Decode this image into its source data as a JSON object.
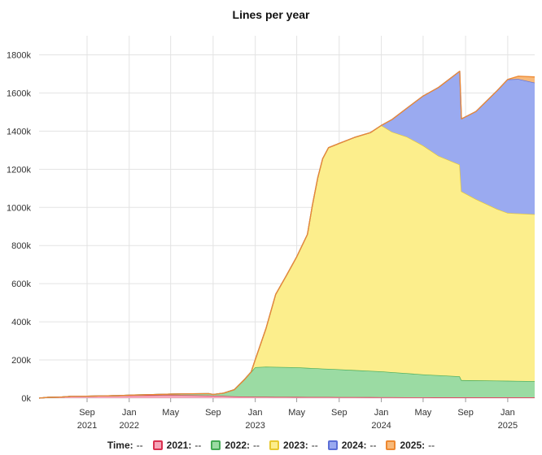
{
  "chart_data": {
    "type": "area",
    "stacked": true,
    "title": "Lines per year",
    "xlabel": "",
    "ylabel": "",
    "ylim": [
      0,
      1900000
    ],
    "xlim": [
      "2021-04-15",
      "2025-03-20"
    ],
    "y_ticks": [
      0,
      200000,
      400000,
      600000,
      800000,
      1000000,
      1200000,
      1400000,
      1600000,
      1800000
    ],
    "y_tick_labels": [
      "0k",
      "200k",
      "400k",
      "600k",
      "800k",
      "1000k",
      "1200k",
      "1400k",
      "1600k",
      "1800k"
    ],
    "x_ticks": [
      {
        "date": "2021-09-01",
        "label": "Sep",
        "year": "2021"
      },
      {
        "date": "2022-01-01",
        "label": "Jan",
        "year": "2022"
      },
      {
        "date": "2022-05-01",
        "label": "May",
        "year": ""
      },
      {
        "date": "2022-09-01",
        "label": "Sep",
        "year": ""
      },
      {
        "date": "2023-01-01",
        "label": "Jan",
        "year": "2023"
      },
      {
        "date": "2023-05-01",
        "label": "May",
        "year": ""
      },
      {
        "date": "2023-09-01",
        "label": "Sep",
        "year": ""
      },
      {
        "date": "2024-01-01",
        "label": "Jan",
        "year": "2024"
      },
      {
        "date": "2024-05-01",
        "label": "May",
        "year": ""
      },
      {
        "date": "2024-09-01",
        "label": "Sep",
        "year": ""
      },
      {
        "date": "2025-01-01",
        "label": "Jan",
        "year": "2025"
      }
    ],
    "grid": true,
    "legend_position": "bottom",
    "series": [
      {
        "name": "2021",
        "fill": "#f4a4b8",
        "stroke": "#d9304f",
        "points": [
          [
            "2021-04-15",
            0
          ],
          [
            "2021-05-10",
            4000
          ],
          [
            "2021-06-15",
            5000
          ],
          [
            "2021-07-15",
            9000
          ],
          [
            "2021-09-01",
            10000
          ],
          [
            "2021-11-01",
            12000
          ],
          [
            "2022-01-01",
            14000
          ],
          [
            "2022-03-01",
            15000
          ],
          [
            "2022-05-01",
            16000
          ],
          [
            "2022-07-01",
            15000
          ],
          [
            "2022-09-01",
            13000
          ],
          [
            "2022-11-01",
            9000
          ],
          [
            "2023-01-01",
            7000
          ],
          [
            "2023-06-01",
            6000
          ],
          [
            "2024-01-01",
            5000
          ],
          [
            "2024-06-01",
            4000
          ],
          [
            "2025-03-20",
            4000
          ]
        ]
      },
      {
        "name": "2022",
        "fill": "#9bdba3",
        "stroke": "#44aa55",
        "points": [
          [
            "2021-04-15",
            0
          ],
          [
            "2021-12-01",
            0
          ],
          [
            "2022-01-15",
            2000
          ],
          [
            "2022-03-01",
            3000
          ],
          [
            "2022-05-01",
            5000
          ],
          [
            "2022-07-01",
            8000
          ],
          [
            "2022-08-20",
            10000
          ],
          [
            "2022-09-01",
            6000
          ],
          [
            "2022-10-01",
            15000
          ],
          [
            "2022-11-01",
            35000
          ],
          [
            "2022-12-01",
            90000
          ],
          [
            "2023-01-01",
            155000
          ],
          [
            "2023-02-01",
            158000
          ],
          [
            "2023-05-01",
            155000
          ],
          [
            "2023-09-01",
            145000
          ],
          [
            "2024-01-01",
            135000
          ],
          [
            "2024-05-01",
            120000
          ],
          [
            "2024-08-15",
            110000
          ],
          [
            "2024-08-20",
            90000
          ],
          [
            "2025-03-20",
            85000
          ]
        ]
      },
      {
        "name": "2023",
        "fill": "#fcee8c",
        "stroke": "#e8c930",
        "points": [
          [
            "2021-04-15",
            0
          ],
          [
            "2022-12-20",
            0
          ],
          [
            "2023-01-01",
            40000
          ],
          [
            "2023-02-01",
            200000
          ],
          [
            "2023-03-01",
            380000
          ],
          [
            "2023-04-01",
            480000
          ],
          [
            "2023-05-01",
            580000
          ],
          [
            "2023-06-01",
            700000
          ],
          [
            "2023-06-15",
            850000
          ],
          [
            "2023-07-01",
            1000000
          ],
          [
            "2023-07-15",
            1100000
          ],
          [
            "2023-08-01",
            1160000
          ],
          [
            "2023-09-01",
            1185000
          ],
          [
            "2023-10-15",
            1220000
          ],
          [
            "2023-12-01",
            1250000
          ],
          [
            "2024-01-01",
            1290000
          ],
          [
            "2024-02-01",
            1260000
          ],
          [
            "2024-03-15",
            1240000
          ],
          [
            "2024-05-01",
            1200000
          ],
          [
            "2024-06-15",
            1150000
          ],
          [
            "2024-08-15",
            1110000
          ],
          [
            "2024-08-20",
            990000
          ],
          [
            "2024-10-01",
            950000
          ],
          [
            "2024-12-01",
            900000
          ],
          [
            "2025-01-01",
            880000
          ],
          [
            "2025-03-20",
            875000
          ]
        ]
      },
      {
        "name": "2024",
        "fill": "#9aaaf0",
        "stroke": "#5c6fd6",
        "points": [
          [
            "2021-04-15",
            0
          ],
          [
            "2023-12-31",
            0
          ],
          [
            "2024-01-01",
            0
          ],
          [
            "2024-02-01",
            65000
          ],
          [
            "2024-03-15",
            150000
          ],
          [
            "2024-05-01",
            260000
          ],
          [
            "2024-06-15",
            360000
          ],
          [
            "2024-08-15",
            490000
          ],
          [
            "2024-08-20",
            380000
          ],
          [
            "2024-10-01",
            460000
          ],
          [
            "2024-12-01",
            620000
          ],
          [
            "2025-01-01",
            700000
          ],
          [
            "2025-02-01",
            705000
          ],
          [
            "2025-03-20",
            690000
          ]
        ]
      },
      {
        "name": "2025",
        "fill": "#f7b97a",
        "stroke": "#ee8830",
        "points": [
          [
            "2021-04-15",
            0
          ],
          [
            "2024-12-31",
            0
          ],
          [
            "2025-01-01",
            0
          ],
          [
            "2025-02-01",
            15000
          ],
          [
            "2025-03-20",
            30000
          ]
        ]
      }
    ]
  },
  "legend": {
    "time_label": "Time:",
    "time_value": "--",
    "items": [
      {
        "label": "2021:",
        "value": "--",
        "fill": "#f4a4b8",
        "stroke": "#d9304f"
      },
      {
        "label": "2022:",
        "value": "--",
        "fill": "#9bdba3",
        "stroke": "#44aa55"
      },
      {
        "label": "2023:",
        "value": "--",
        "fill": "#fcee8c",
        "stroke": "#e8c930"
      },
      {
        "label": "2024:",
        "value": "--",
        "fill": "#9aaaf0",
        "stroke": "#5c6fd6"
      },
      {
        "label": "2025:",
        "value": "--",
        "fill": "#f7b97a",
        "stroke": "#ee8830"
      }
    ]
  }
}
